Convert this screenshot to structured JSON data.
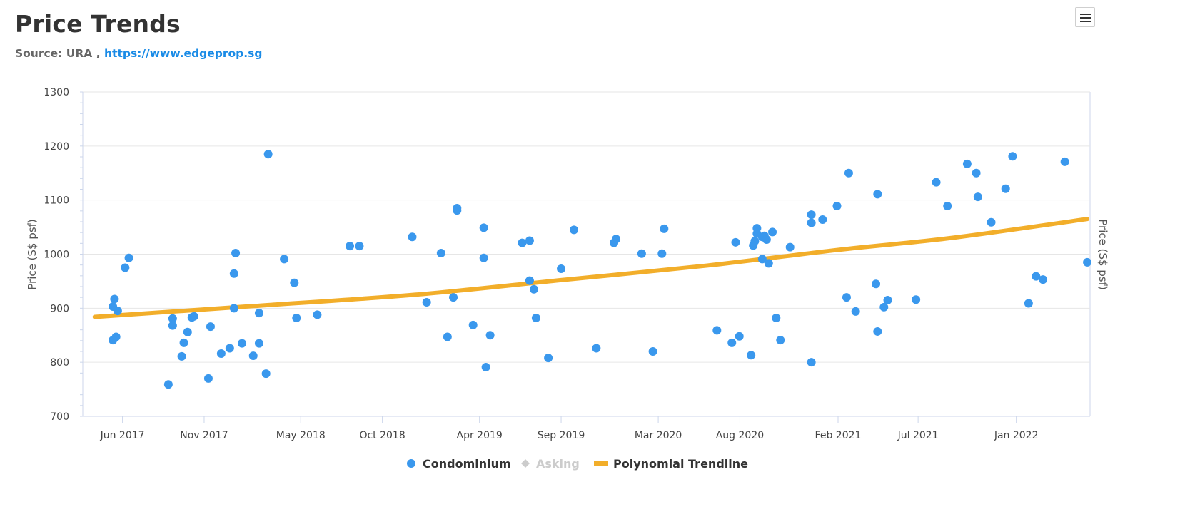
{
  "header": {
    "title": "Price Trends",
    "source_prefix": "Source: URA ,",
    "source_link": "https://www.edgeprop.sg"
  },
  "toolbar": {
    "menu_icon": "hamburger-icon"
  },
  "colors": {
    "condo": "#3a98ed",
    "asking": "#cccccc",
    "trend": "#f2ae2a"
  },
  "chart_data": {
    "type": "scatter",
    "ylabel": "Price (S$ psf)",
    "ylabel_right": "Price (S$ psf)",
    "ylim": [
      700,
      1300
    ],
    "yticks": [
      700,
      800,
      900,
      1000,
      1100,
      1200,
      1300
    ],
    "xticks": [
      {
        "date": "2017-06-01",
        "label": "Jun 2017"
      },
      {
        "date": "2017-11-01",
        "label": "Nov 2017"
      },
      {
        "date": "2018-05-01",
        "label": "May 2018"
      },
      {
        "date": "2018-10-01",
        "label": "Oct 2018"
      },
      {
        "date": "2019-04-01",
        "label": "Apr 2019"
      },
      {
        "date": "2019-09-01",
        "label": "Sep 2019"
      },
      {
        "date": "2020-03-01",
        "label": "Mar 2020"
      },
      {
        "date": "2020-08-01",
        "label": "Aug 2020"
      },
      {
        "date": "2021-02-01",
        "label": "Feb 2021"
      },
      {
        "date": "2021-07-01",
        "label": "Jul 2021"
      },
      {
        "date": "2022-01-01",
        "label": "Jan 2022"
      }
    ],
    "xlim": [
      "2017-04-01",
      "2022-05-14"
    ],
    "legend": [
      {
        "name": "Condominium",
        "marker": "circle",
        "active": true
      },
      {
        "name": "Asking",
        "marker": "diamond",
        "active": false
      },
      {
        "name": "Polynomial Trendline",
        "marker": "line",
        "active": true
      }
    ],
    "series": [
      {
        "name": "Condominium",
        "points": [
          [
            "2017-05-14",
            903
          ],
          [
            "2017-05-14",
            841
          ],
          [
            "2017-05-17",
            917
          ],
          [
            "2017-05-20",
            847
          ],
          [
            "2017-05-23",
            895
          ],
          [
            "2017-06-06",
            975
          ],
          [
            "2017-06-13",
            993
          ],
          [
            "2017-08-26",
            759
          ],
          [
            "2017-09-03",
            881
          ],
          [
            "2017-09-03",
            868
          ],
          [
            "2017-09-20",
            811
          ],
          [
            "2017-09-24",
            836
          ],
          [
            "2017-10-01",
            856
          ],
          [
            "2017-10-09",
            883
          ],
          [
            "2017-10-13",
            885
          ],
          [
            "2017-11-09",
            770
          ],
          [
            "2017-11-13",
            866
          ],
          [
            "2017-12-03",
            816
          ],
          [
            "2017-12-19",
            826
          ],
          [
            "2017-12-27",
            900
          ],
          [
            "2017-12-27",
            964
          ],
          [
            "2017-12-30",
            1002
          ],
          [
            "2018-01-11",
            835
          ],
          [
            "2018-02-01",
            812
          ],
          [
            "2018-02-12",
            835
          ],
          [
            "2018-02-12",
            891
          ],
          [
            "2018-02-25",
            779
          ],
          [
            "2018-03-01",
            1185
          ],
          [
            "2018-03-31",
            991
          ],
          [
            "2018-04-19",
            947
          ],
          [
            "2018-04-23",
            882
          ],
          [
            "2018-06-01",
            888
          ],
          [
            "2018-08-01",
            1015
          ],
          [
            "2018-08-19",
            1015
          ],
          [
            "2018-11-26",
            1032
          ],
          [
            "2018-12-23",
            911
          ],
          [
            "2019-01-19",
            1002
          ],
          [
            "2019-01-31",
            847
          ],
          [
            "2019-02-11",
            920
          ],
          [
            "2019-02-18",
            1081
          ],
          [
            "2019-02-18",
            1085
          ],
          [
            "2019-03-20",
            869
          ],
          [
            "2019-04-09",
            1049
          ],
          [
            "2019-04-09",
            993
          ],
          [
            "2019-04-13",
            791
          ],
          [
            "2019-04-21",
            850
          ],
          [
            "2019-06-20",
            1021
          ],
          [
            "2019-07-04",
            1025
          ],
          [
            "2019-07-04",
            951
          ],
          [
            "2019-07-12",
            935
          ],
          [
            "2019-07-16",
            882
          ],
          [
            "2019-08-08",
            808
          ],
          [
            "2019-09-01",
            973
          ],
          [
            "2019-09-25",
            1045
          ],
          [
            "2019-11-06",
            826
          ],
          [
            "2019-12-09",
            1021
          ],
          [
            "2019-12-13",
            1028
          ],
          [
            "2020-01-30",
            1001
          ],
          [
            "2020-02-20",
            820
          ],
          [
            "2020-03-08",
            1001
          ],
          [
            "2020-03-12",
            1047
          ],
          [
            "2020-06-19",
            859
          ],
          [
            "2020-07-17",
            836
          ],
          [
            "2020-07-24",
            1022
          ],
          [
            "2020-07-31",
            848
          ],
          [
            "2020-08-22",
            813
          ],
          [
            "2020-08-26",
            1016
          ],
          [
            "2020-08-29",
            1024
          ],
          [
            "2020-09-02",
            1038
          ],
          [
            "2020-09-02",
            1048
          ],
          [
            "2020-09-12",
            1032
          ],
          [
            "2020-09-12",
            991
          ],
          [
            "2020-09-16",
            1034
          ],
          [
            "2020-09-20",
            1027
          ],
          [
            "2020-09-24",
            983
          ],
          [
            "2020-10-01",
            1041
          ],
          [
            "2020-10-08",
            882
          ],
          [
            "2020-10-16",
            841
          ],
          [
            "2020-11-03",
            1013
          ],
          [
            "2020-12-13",
            800
          ],
          [
            "2020-12-13",
            1058
          ],
          [
            "2020-12-13",
            1073
          ],
          [
            "2021-01-03",
            1064
          ],
          [
            "2021-01-30",
            1089
          ],
          [
            "2021-02-17",
            920
          ],
          [
            "2021-02-21",
            1150
          ],
          [
            "2021-03-06",
            894
          ],
          [
            "2021-04-13",
            945
          ],
          [
            "2021-04-16",
            857
          ],
          [
            "2021-04-16",
            1111
          ],
          [
            "2021-04-28",
            902
          ],
          [
            "2021-05-05",
            915
          ],
          [
            "2021-06-27",
            916
          ],
          [
            "2021-08-04",
            1133
          ],
          [
            "2021-08-25",
            1089
          ],
          [
            "2021-10-01",
            1167
          ],
          [
            "2021-10-18",
            1150
          ],
          [
            "2021-10-21",
            1106
          ],
          [
            "2021-11-15",
            1059
          ],
          [
            "2021-12-12",
            1121
          ],
          [
            "2021-12-25",
            1181
          ],
          [
            "2022-01-24",
            909
          ],
          [
            "2022-02-07",
            959
          ],
          [
            "2022-02-20",
            953
          ],
          [
            "2022-04-02",
            1171
          ],
          [
            "2022-05-14",
            985
          ]
        ]
      },
      {
        "name": "Polynomial Trendline",
        "points": [
          [
            "2017-04-10",
            884
          ],
          [
            "2018-02-01",
            904
          ],
          [
            "2018-12-01",
            925
          ],
          [
            "2019-09-01",
            952
          ],
          [
            "2020-06-01",
            979
          ],
          [
            "2021-02-01",
            1008
          ],
          [
            "2021-09-01",
            1030
          ],
          [
            "2022-05-14",
            1065
          ]
        ]
      }
    ]
  }
}
